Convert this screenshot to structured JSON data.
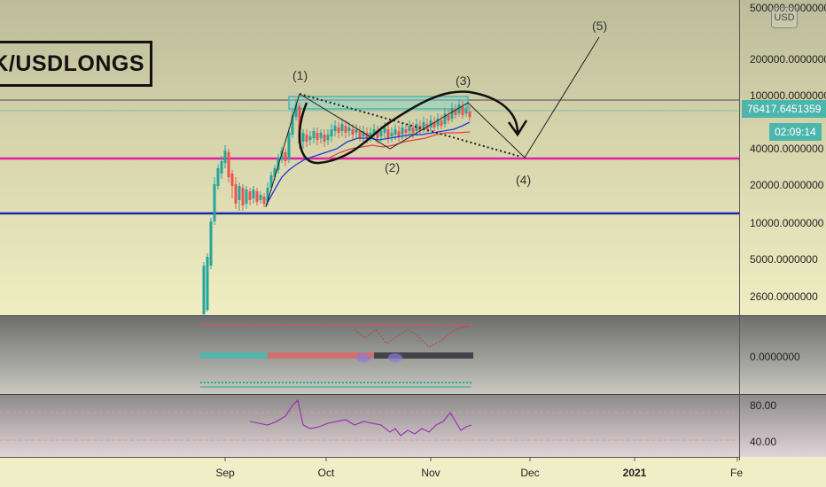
{
  "symbol_title": "NK/USDLONGS",
  "currency_badge": "USD",
  "price_label": "76417.6451359",
  "countdown_label": "02:09:14",
  "colors": {
    "bg_top": "#c9c9a4",
    "bg_bottom": "#ecebc0",
    "panel_gray": "#8a8a88",
    "pink_line": "#e020a0",
    "blue_line": "#1a2aa8",
    "teal": "#4db6ac",
    "candle_up": "#26a69a",
    "candle_down": "#ef5350",
    "ma_blue": "#1f3bd6",
    "ma_red": "#e04040",
    "rsi_line": "#9c27b0"
  },
  "chart_data": {
    "type": "candlestick",
    "yscale": "log",
    "price_axis_labels": [
      "500000.0000000",
      "200000.0000000",
      "100000.0000000",
      "40000.0000000",
      "20000.0000000",
      "10000.0000000",
      "5000.0000000",
      "2600.0000000"
    ],
    "price_axis_values": [
      500000,
      200000,
      100000,
      40000,
      20000,
      10000,
      5000,
      2600
    ],
    "x_labels": [
      "Sep",
      "Oct",
      "Nov",
      "Dec",
      "2021",
      "Fe"
    ],
    "horizontal_levels": [
      {
        "value": 34000,
        "color": "pink"
      },
      {
        "value": 11500,
        "color": "blue"
      },
      {
        "value": 92000,
        "color": "gray"
      }
    ],
    "wave_labels": [
      "(1)",
      "(2)",
      "(3)",
      "(4)",
      "(5)"
    ],
    "indicator_axis_labels": [
      "0.0000000"
    ],
    "rsi_axis_labels": [
      "80.00",
      "40.00"
    ],
    "last_price": 76417.6451359
  }
}
